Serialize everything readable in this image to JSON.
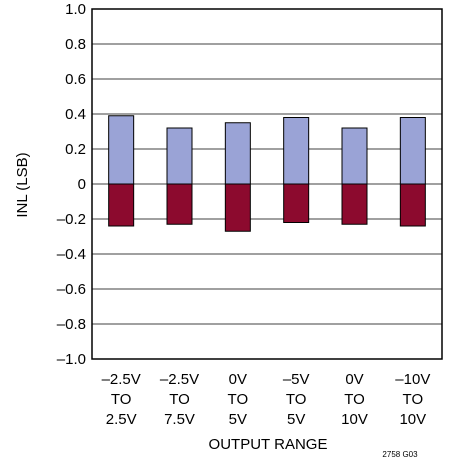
{
  "chart_data": {
    "type": "bar",
    "title": "",
    "xlabel": "OUTPUT RANGE",
    "ylabel": "INL (LSB)",
    "ylim": [
      -1.0,
      1.0
    ],
    "yticks": [
      "1.0",
      "0.8",
      "0.6",
      "0.4",
      "0.2",
      "0",
      "–0.2",
      "–0.4",
      "–0.6",
      "–0.8",
      "–1.0"
    ],
    "ytick_values": [
      1.0,
      0.8,
      0.6,
      0.4,
      0.2,
      0,
      -0.2,
      -0.4,
      -0.6,
      -0.8,
      -1.0
    ],
    "grid": "horizontal",
    "legend": "none",
    "categories": [
      [
        "–2.5V",
        "TO",
        "2.5V"
      ],
      [
        "–2.5V",
        "TO",
        "7.5V"
      ],
      [
        "0V",
        "TO",
        "5V"
      ],
      [
        "–5V",
        "TO",
        "5V"
      ],
      [
        "0V",
        "TO",
        "10V"
      ],
      [
        "–10V",
        "TO",
        "10V"
      ]
    ],
    "series": [
      {
        "values": [
          0.39,
          0.32,
          0.35,
          0.38,
          0.32,
          0.38
        ],
        "color": "#9aa3d6"
      },
      {
        "values": [
          -0.24,
          -0.23,
          -0.27,
          -0.22,
          -0.23,
          -0.24
        ],
        "color": "#8c0a2e"
      }
    ],
    "figure_id": "2758 G03"
  }
}
